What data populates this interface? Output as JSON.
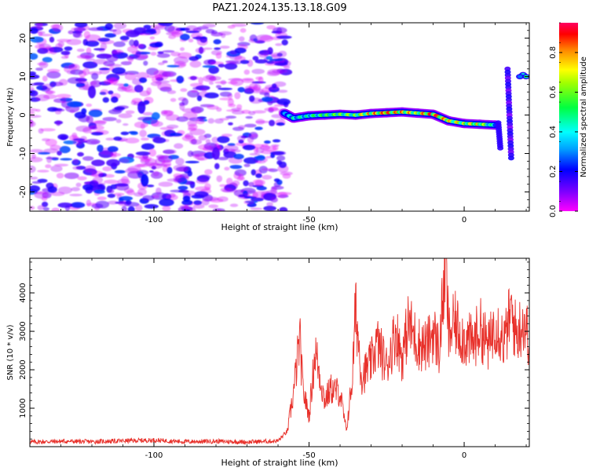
{
  "title": "PAZ1.2024.135.13.18.G09",
  "chart_data": [
    {
      "type": "heatmap",
      "title": "PAZ1.2024.135.13.18.G09",
      "xlabel": "Height of straight line (km)",
      "ylabel": "Frequency (Hz)",
      "xlim": [
        -140,
        21
      ],
      "ylim": [
        -25,
        24
      ],
      "xticks": [
        -100,
        -50,
        0
      ],
      "yticks": [
        20,
        10,
        0,
        -10,
        -20
      ],
      "colorbar": {
        "label": "Normalized spectral amplitude",
        "range": [
          0.0,
          0.95
        ],
        "ticks": [
          "0.0",
          "0.2",
          "0.4",
          "0.6",
          "0.8"
        ],
        "colormap": "gist_rainbow"
      },
      "noise_region_x": [
        -140,
        -57
      ],
      "ridge": {
        "x": [
          -58,
          -55,
          -50,
          -45,
          -40,
          -35,
          -30,
          -25,
          -20,
          -15,
          -10,
          -5,
          0,
          5,
          10
        ],
        "freq": [
          0.5,
          -0.8,
          -0.2,
          0.0,
          0.2,
          0.0,
          0.4,
          0.6,
          0.8,
          0.5,
          0.2,
          -1.5,
          -2.2,
          -2.4,
          -2.6
        ],
        "amplitude": [
          0.3,
          0.45,
          0.5,
          0.55,
          0.6,
          0.65,
          0.8,
          0.85,
          0.8,
          0.75,
          0.9,
          0.75,
          0.7,
          0.75,
          0.4
        ]
      }
    },
    {
      "type": "line",
      "xlabel": "Height of straight line (km)",
      "ylabel": "SNR (10 * v/v)",
      "xlim": [
        -140,
        21
      ],
      "ylim": [
        0,
        4900
      ],
      "xticks": [
        -100,
        -50,
        0
      ],
      "yticks": [
        1000,
        2000,
        3000,
        4000
      ],
      "color": "#e8302a",
      "x": [
        -140,
        -130,
        -120,
        -110,
        -100,
        -90,
        -80,
        -70,
        -60,
        -57,
        -55,
        -53,
        -52,
        -50,
        -48,
        -45,
        -43,
        -40,
        -38,
        -36,
        -35,
        -33,
        -30,
        -28,
        -25,
        -22,
        -20,
        -18,
        -15,
        -12,
        -10,
        -8,
        -7,
        -6,
        -5,
        -3,
        0,
        3,
        5,
        8,
        10,
        13,
        15,
        17,
        19,
        21
      ],
      "y": [
        120,
        140,
        130,
        150,
        170,
        130,
        140,
        120,
        150,
        400,
        1400,
        2800,
        1500,
        800,
        2500,
        1200,
        1500,
        1400,
        400,
        1800,
        3600,
        1800,
        2200,
        2700,
        2100,
        3000,
        2300,
        3200,
        2700,
        2600,
        3000,
        2500,
        3700,
        4900,
        2900,
        3200,
        2800,
        2700,
        3100,
        2600,
        3300,
        2700,
        3500,
        2900,
        3300,
        2800
      ]
    }
  ]
}
